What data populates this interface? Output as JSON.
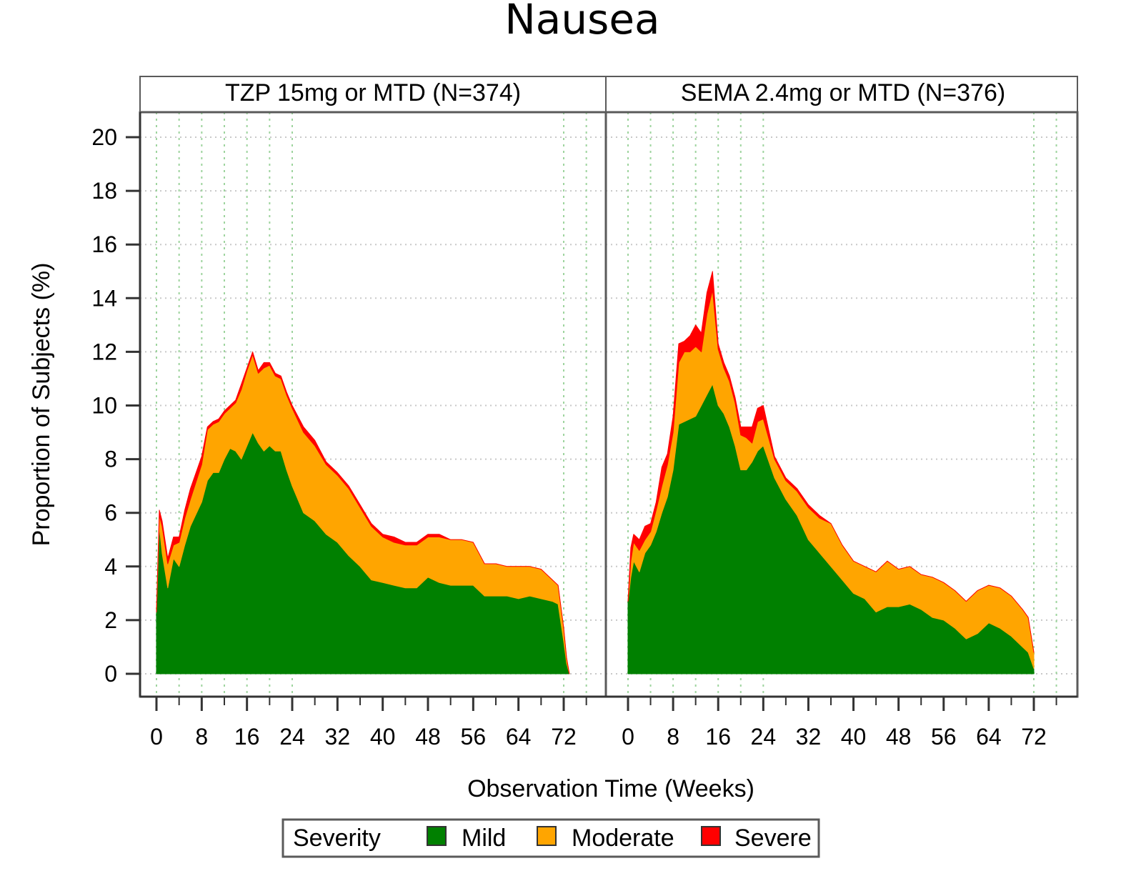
{
  "colors": {
    "mild": "#008000",
    "moderate": "#ffa500",
    "severe": "#ff0000",
    "grid": "#9ed49e",
    "frame": "#5a5a5a"
  },
  "chart_data": {
    "type": "area",
    "stacked": true,
    "title": "Nausea",
    "xlabel": "Observation Time (Weeks)",
    "ylabel": "Proportion of Subjects (%)",
    "ylim": [
      0,
      20
    ],
    "yticks": [
      "0",
      "2",
      "4",
      "6",
      "8",
      "10",
      "12",
      "14",
      "16",
      "18",
      "20"
    ],
    "xlim": [
      -1,
      77
    ],
    "xticks": [
      "0",
      "8",
      "16",
      "24",
      "32",
      "40",
      "48",
      "56",
      "64",
      "72"
    ],
    "legend": {
      "title": "Severity",
      "entries": [
        {
          "name": "Mild",
          "color_key": "mild"
        },
        {
          "name": "Moderate",
          "color_key": "moderate"
        },
        {
          "name": "Severe",
          "color_key": "severe"
        }
      ],
      "position": "bottom-center"
    },
    "panels": [
      {
        "label": "TZP 15mg or MTD (N=374)",
        "x": [
          0,
          0.5,
          1,
          2,
          3,
          4,
          5,
          6,
          8,
          9,
          10,
          11,
          12,
          13,
          14,
          15,
          16,
          17,
          18,
          19,
          20,
          21,
          22,
          23,
          24,
          26,
          28,
          30,
          32,
          34,
          36,
          38,
          40,
          42,
          44,
          46,
          48,
          50,
          52,
          54,
          56,
          58,
          60,
          62,
          64,
          66,
          68,
          70,
          71,
          72,
          72.5,
          73
        ],
        "series": [
          {
            "name": "Mild",
            "values": [
              2.3,
              5.5,
              4.5,
              3.2,
              4.3,
              4.0,
              4.8,
              5.5,
              6.4,
              7.2,
              7.5,
              7.5,
              8.0,
              8.4,
              8.3,
              8.0,
              8.5,
              9.0,
              8.6,
              8.3,
              8.5,
              8.3,
              8.3,
              7.6,
              7.0,
              6.0,
              5.7,
              5.2,
              4.9,
              4.4,
              4.0,
              3.5,
              3.4,
              3.3,
              3.2,
              3.2,
              3.6,
              3.4,
              3.3,
              3.3,
              3.3,
              2.9,
              2.9,
              2.9,
              2.8,
              2.9,
              2.8,
              2.7,
              2.6,
              1.2,
              0.4,
              0.0
            ]
          },
          {
            "name": "Moderate",
            "values": [
              0.0,
              0.4,
              1.0,
              0.9,
              0.5,
              0.9,
              1.0,
              1.0,
              1.4,
              1.9,
              1.8,
              1.9,
              1.7,
              1.5,
              1.8,
              2.6,
              2.8,
              2.9,
              2.6,
              3.1,
              3.0,
              2.8,
              2.7,
              2.8,
              2.9,
              3.0,
              2.8,
              2.6,
              2.5,
              2.5,
              2.2,
              2.0,
              1.7,
              1.6,
              1.6,
              1.6,
              1.5,
              1.7,
              1.7,
              1.7,
              1.6,
              1.2,
              1.2,
              1.1,
              1.2,
              1.1,
              1.1,
              0.8,
              0.7,
              0.5,
              0.2,
              0.0
            ]
          },
          {
            "name": "Severe",
            "values": [
              0.0,
              0.2,
              0.2,
              0.2,
              0.3,
              0.2,
              0.3,
              0.4,
              0.3,
              0.1,
              0.1,
              0.1,
              0.1,
              0.1,
              0.1,
              0.2,
              0.1,
              0.1,
              0.1,
              0.2,
              0.1,
              0.1,
              0.1,
              0.1,
              0.1,
              0.2,
              0.2,
              0.1,
              0.1,
              0.1,
              0.1,
              0.1,
              0.1,
              0.2,
              0.1,
              0.1,
              0.1,
              0.1,
              0.0,
              0.0,
              0.0,
              0.0,
              0.0,
              0.0,
              0.0,
              0.0,
              0.0,
              0.0,
              0.0,
              0.0,
              0.0,
              0.0
            ]
          }
        ]
      },
      {
        "label": "SEMA 2.4mg or MTD (N=376)",
        "x": [
          0,
          0.5,
          1,
          2,
          3,
          4,
          5,
          6,
          7,
          8,
          9,
          10,
          11,
          12,
          13,
          14,
          15,
          16,
          17,
          18,
          19,
          20,
          21,
          22,
          23,
          24,
          26,
          28,
          30,
          32,
          34,
          36,
          38,
          40,
          42,
          44,
          46,
          48,
          50,
          52,
          54,
          56,
          58,
          60,
          62,
          64,
          66,
          68,
          70,
          71,
          72
        ],
        "series": [
          {
            "name": "Mild",
            "values": [
              2.7,
              3.6,
              4.2,
              3.8,
              4.5,
              4.8,
              5.3,
              6.0,
              6.6,
              7.6,
              9.3,
              9.4,
              9.5,
              9.6,
              10.0,
              10.4,
              10.8,
              10.0,
              9.7,
              9.2,
              8.5,
              7.6,
              7.6,
              7.9,
              8.3,
              8.5,
              7.3,
              6.5,
              5.9,
              5.0,
              4.5,
              4.0,
              3.5,
              3.0,
              2.8,
              2.3,
              2.5,
              2.5,
              2.6,
              2.4,
              2.1,
              2.0,
              1.7,
              1.3,
              1.5,
              1.9,
              1.7,
              1.4,
              1.0,
              0.8,
              0.2
            ]
          },
          {
            "name": "Moderate",
            "values": [
              0.0,
              0.6,
              0.7,
              0.8,
              0.5,
              0.5,
              0.8,
              1.0,
              1.2,
              1.4,
              2.3,
              2.6,
              2.5,
              2.6,
              2.0,
              3.0,
              3.5,
              2.1,
              1.7,
              1.7,
              1.6,
              1.3,
              1.2,
              0.7,
              1.1,
              1.0,
              0.7,
              0.7,
              0.9,
              1.2,
              1.3,
              1.6,
              1.3,
              1.2,
              1.2,
              1.5,
              1.7,
              1.4,
              1.4,
              1.3,
              1.5,
              1.4,
              1.4,
              1.4,
              1.6,
              1.4,
              1.5,
              1.5,
              1.4,
              1.3,
              0.6
            ]
          },
          {
            "name": "Severe",
            "values": [
              0.0,
              0.5,
              0.3,
              0.4,
              0.5,
              0.3,
              0.3,
              0.7,
              0.4,
              0.6,
              0.7,
              0.4,
              0.6,
              0.8,
              0.7,
              0.8,
              0.7,
              0.2,
              0.2,
              0.2,
              0.2,
              0.3,
              0.4,
              0.6,
              0.5,
              0.5,
              0.1,
              0.1,
              0.1,
              0.1,
              0.1,
              0.0,
              0.0,
              0.0,
              0.0,
              0.0,
              0.0,
              0.0,
              0.0,
              0.0,
              0.0,
              0.0,
              0.0,
              0.0,
              0.0,
              0.0,
              0.0,
              0.0,
              0.0,
              0.0,
              0.0
            ]
          }
        ]
      }
    ]
  }
}
